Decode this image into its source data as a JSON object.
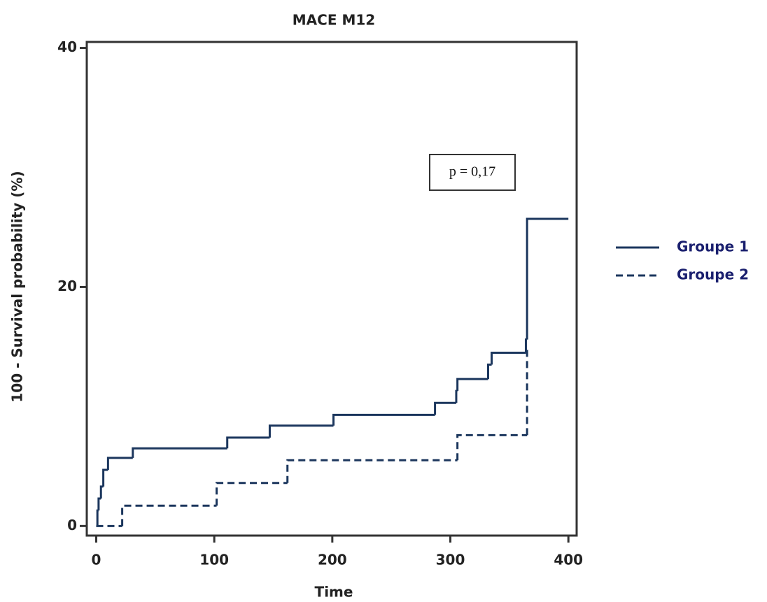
{
  "chart_data": {
    "type": "step",
    "title": "MACE M12",
    "xlabel": "Time",
    "ylabel": "100 - Survival probability (%)",
    "annotation": "p = 0,17",
    "xlim": [
      -8,
      407
    ],
    "ylim": [
      -0.8,
      40.5
    ],
    "xticks": [
      0,
      100,
      200,
      300,
      400
    ],
    "yticks": [
      0,
      20,
      40
    ],
    "legend": "right",
    "series": [
      {
        "name": "Groupe 1",
        "color": "#1b365d",
        "dash": "solid",
        "x": [
          0,
          1,
          2,
          4,
          6,
          10,
          31,
          111,
          147,
          201,
          287,
          305,
          306,
          332,
          335,
          364,
          365,
          400
        ],
        "values": [
          0,
          1.3,
          2.3,
          3.3,
          4.7,
          5.7,
          6.5,
          7.4,
          8.4,
          9.3,
          10.3,
          11.3,
          12.3,
          13.5,
          14.5,
          15.6,
          25.7,
          25.7
        ]
      },
      {
        "name": "Groupe 2",
        "color": "#1b365d",
        "dash": "dashed",
        "x": [
          0,
          22,
          102,
          162,
          306,
          365
        ],
        "values": [
          0,
          1.7,
          3.6,
          5.5,
          7.6,
          15
        ]
      }
    ]
  }
}
